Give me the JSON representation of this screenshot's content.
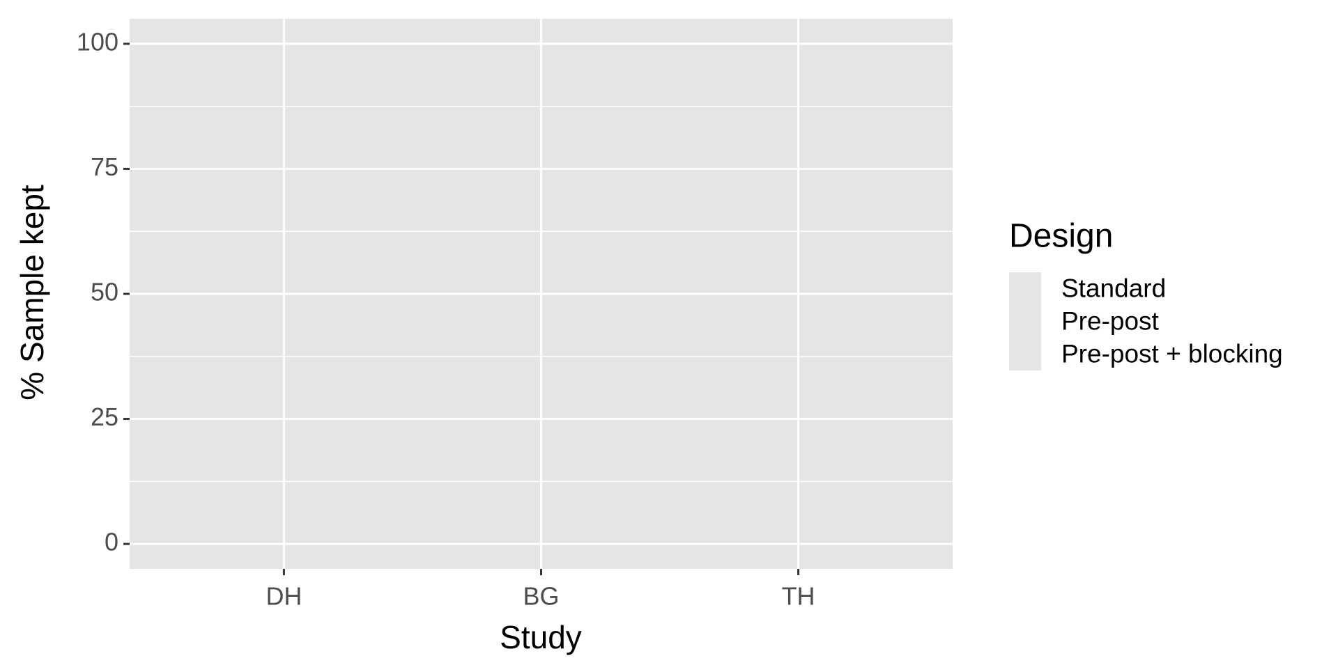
{
  "chart_data": {
    "type": "bar",
    "x_label": "Study",
    "y_label": "% Sample kept",
    "legend_title": "Design",
    "categories": [
      "DH",
      "BG",
      "TH"
    ],
    "series": [
      {
        "name": "Standard",
        "values": [
          null,
          null,
          null
        ]
      },
      {
        "name": "Pre-post",
        "values": [
          null,
          null,
          null
        ]
      },
      {
        "name": "Pre-post + blocking",
        "values": [
          null,
          null,
          null
        ]
      }
    ],
    "ylim": [
      -5,
      105
    ],
    "yticks": [
      0,
      25,
      50,
      75,
      100
    ],
    "minor_yticks": [
      12.5,
      37.5,
      62.5,
      87.5
    ],
    "grid": true,
    "legend": "right"
  }
}
